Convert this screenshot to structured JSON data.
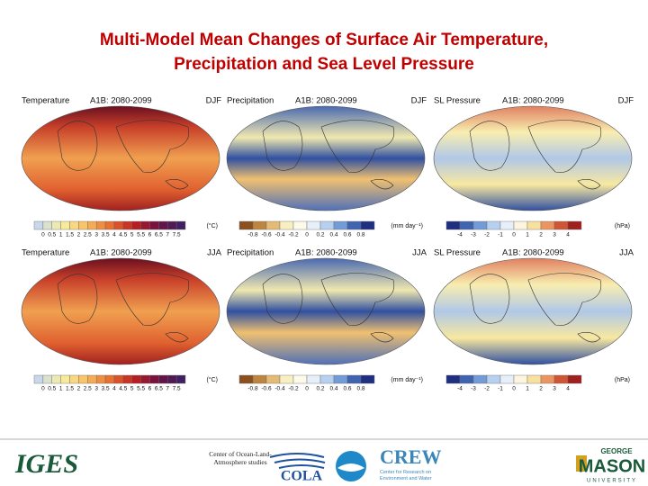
{
  "title": [
    "Multi-Model Mean Changes of Surface Air Temperature,",
    "Precipitation and Sea Level Pressure"
  ],
  "panels": [
    {
      "variable": "Temperature",
      "scenario": "A1B: 2080-2099",
      "season": "DJF"
    },
    {
      "variable": "Precipitation",
      "scenario": "A1B: 2080-2099",
      "season": "DJF"
    },
    {
      "variable": "SL Pressure",
      "scenario": "A1B: 2080-2099",
      "season": "DJF"
    },
    {
      "variable": "Temperature",
      "scenario": "A1B: 2080-2099",
      "season": "JJA"
    },
    {
      "variable": "Precipitation",
      "scenario": "A1B: 2080-2099",
      "season": "JJA"
    },
    {
      "variable": "SL Pressure",
      "scenario": "A1B: 2080-2099",
      "season": "JJA"
    }
  ],
  "colorbars": [
    {
      "ticks": [
        0,
        0.5,
        1,
        1.5,
        2,
        2.5,
        3,
        3.5,
        4,
        4.5,
        5,
        5.5,
        6,
        6.5,
        7,
        7.5
      ],
      "unit": "(°C)"
    },
    {
      "ticks": [
        -0.8,
        -0.6,
        -0.4,
        -0.2,
        0,
        0.2,
        0.4,
        0.6,
        0.8
      ],
      "unit": "(mm day⁻¹)"
    },
    {
      "ticks": [
        -4,
        -3,
        -2,
        -1,
        0,
        1,
        2,
        3,
        4
      ],
      "unit": "(hPa)"
    }
  ],
  "footer": {
    "iges": "IGES",
    "cola_caption": "Center of Ocean-Land-Atmosphere studies",
    "cola": "COLA",
    "crew": "CREW",
    "crew_caption": "Center for Research on Environment and Water",
    "gmu_top": "GEORGE",
    "gmu_main": "MASON",
    "gmu_bottom": "UNIVERSITY"
  }
}
